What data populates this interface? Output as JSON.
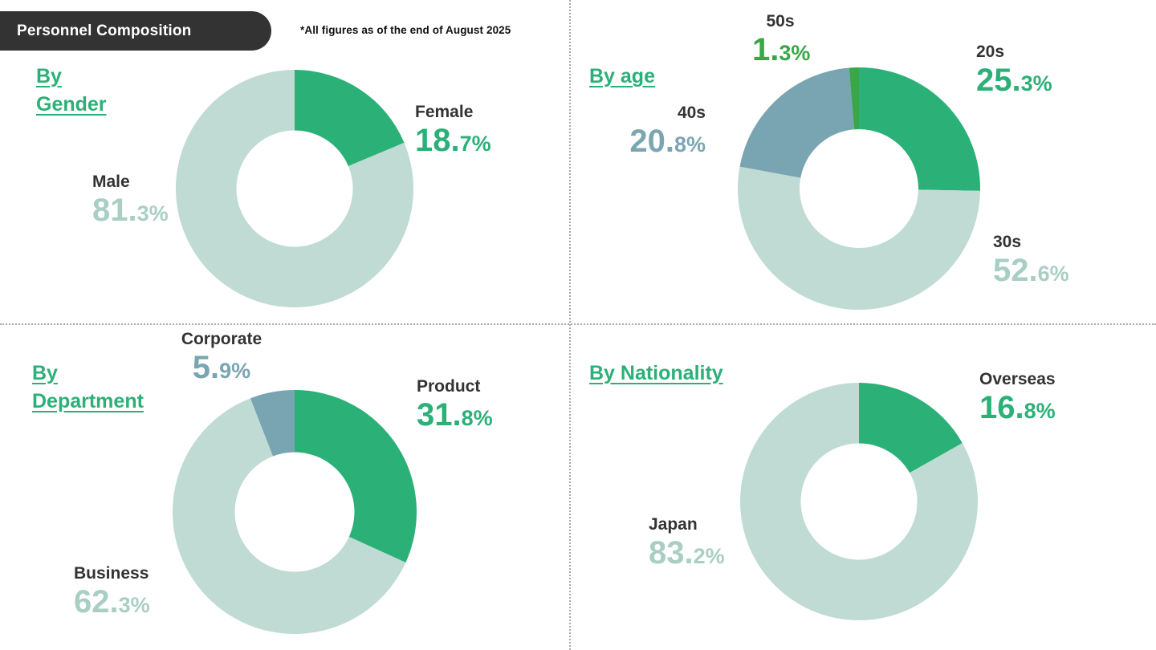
{
  "header": {
    "title": "Personnel Composition",
    "note": "*All figures as of the end of August 2025"
  },
  "colors": {
    "green": "#2bb077",
    "pale": "#c0dbd4",
    "teal": "#78a5b1",
    "dark_green": "#39a748",
    "pale_text": "#a9cec4",
    "teal_text": "#7aa6b2",
    "header_bg": "#333333"
  },
  "chart_data": [
    {
      "type": "pie",
      "title_lines": [
        "By",
        "Gender"
      ],
      "series": [
        {
          "name": "Female",
          "value": 18.7,
          "display_int": "18.",
          "display_dec": "7%",
          "color": "#2bb077",
          "label_color": "#2bb077"
        },
        {
          "name": "Male",
          "value": 81.3,
          "display_int": "81.",
          "display_dec": "3%",
          "color": "#c0dbd4",
          "label_color": "#a9cec4"
        }
      ]
    },
    {
      "type": "pie",
      "title_lines": [
        "By age"
      ],
      "series": [
        {
          "name": "20s",
          "value": 25.3,
          "display_int": "25.",
          "display_dec": "3%",
          "color": "#2bb077",
          "label_color": "#2bb077"
        },
        {
          "name": "30s",
          "value": 52.6,
          "display_int": "52.",
          "display_dec": "6%",
          "color": "#c0dbd4",
          "label_color": "#a9cec4"
        },
        {
          "name": "40s",
          "value": 20.8,
          "display_int": "20.",
          "display_dec": "8%",
          "color": "#78a5b1",
          "label_color": "#7aa6b2"
        },
        {
          "name": "50s",
          "value": 1.3,
          "display_int": "1.",
          "display_dec": "3%",
          "color": "#39a748",
          "label_color": "#39a748"
        }
      ]
    },
    {
      "type": "pie",
      "title_lines": [
        "By",
        "Department"
      ],
      "series": [
        {
          "name": "Product",
          "value": 31.8,
          "display_int": "31.",
          "display_dec": "8%",
          "color": "#2bb077",
          "label_color": "#2bb077"
        },
        {
          "name": "Business",
          "value": 62.3,
          "display_int": "62.",
          "display_dec": "3%",
          "color": "#c0dbd4",
          "label_color": "#a9cec4"
        },
        {
          "name": "Corporate",
          "value": 5.9,
          "display_int": "5.",
          "display_dec": "9%",
          "color": "#78a5b1",
          "label_color": "#7aa6b2"
        }
      ]
    },
    {
      "type": "pie",
      "title_lines": [
        "By Nationality"
      ],
      "series": [
        {
          "name": "Overseas",
          "value": 16.8,
          "display_int": "16.",
          "display_dec": "8%",
          "color": "#2bb077",
          "label_color": "#2bb077"
        },
        {
          "name": "Japan",
          "value": 83.2,
          "display_int": "83.",
          "display_dec": "2%",
          "color": "#c0dbd4",
          "label_color": "#a9cec4"
        }
      ]
    }
  ]
}
